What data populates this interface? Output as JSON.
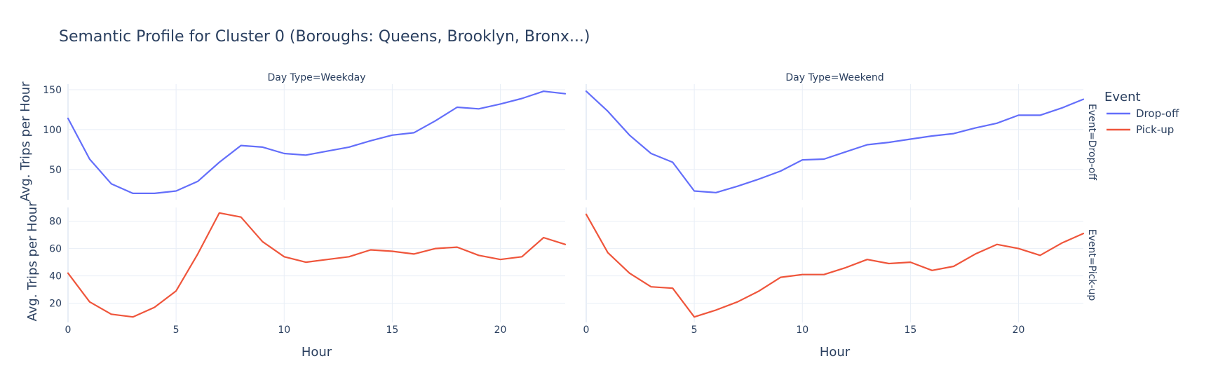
{
  "chart_data": {
    "type": "line",
    "title": "Semantic Profile for Cluster 0 (Boroughs: Queens, Brooklyn, Bronx...)",
    "xlabel": "Hour",
    "ylabel": "Avg. Trips per Hour",
    "xlim": [
      0,
      23
    ],
    "xticks": [
      0,
      5,
      10,
      15,
      20
    ],
    "grid": true,
    "legend": {
      "title": "Event",
      "placement": "top-right outside"
    },
    "column_facets": [
      "Day Type=Weekday",
      "Day Type=Weekend"
    ],
    "row_facets": [
      "Event=Drop-off",
      "Event=Pick-up"
    ],
    "rows": [
      {
        "name": "Drop-off",
        "ylim": [
          12,
          157
        ],
        "yticks": [
          50,
          100,
          150
        ]
      },
      {
        "name": "Pick-up",
        "ylim": [
          6,
          90
        ],
        "yticks": [
          20,
          40,
          60,
          80
        ]
      }
    ],
    "series": [
      {
        "name": "Drop-off",
        "color": "#636efa",
        "facet": "Day Type=Weekday",
        "x": [
          0,
          1,
          2,
          3,
          4,
          5,
          6,
          7,
          8,
          9,
          10,
          11,
          12,
          13,
          14,
          15,
          16,
          17,
          18,
          19,
          20,
          21,
          22,
          23
        ],
        "values": [
          114,
          63,
          32,
          20,
          20,
          23,
          35,
          59,
          80,
          78,
          70,
          68,
          73,
          78,
          86,
          93,
          96,
          111,
          128,
          126,
          132,
          139,
          148,
          145
        ]
      },
      {
        "name": "Drop-off",
        "color": "#636efa",
        "facet": "Day Type=Weekend",
        "x": [
          0,
          1,
          2,
          3,
          4,
          5,
          6,
          7,
          8,
          9,
          10,
          11,
          12,
          13,
          14,
          15,
          16,
          17,
          18,
          19,
          20,
          21,
          22,
          23
        ],
        "values": [
          148,
          123,
          93,
          70,
          59,
          23,
          21,
          29,
          38,
          48,
          62,
          63,
          72,
          81,
          84,
          88,
          92,
          95,
          102,
          108,
          118,
          118,
          127,
          138
        ]
      },
      {
        "name": "Pick-up",
        "color": "#ef553b",
        "facet": "Day Type=Weekday",
        "x": [
          0,
          1,
          2,
          3,
          4,
          5,
          6,
          7,
          8,
          9,
          10,
          11,
          12,
          13,
          14,
          15,
          16,
          17,
          18,
          19,
          20,
          21,
          22,
          23
        ],
        "values": [
          42,
          21,
          12,
          10,
          17,
          29,
          56,
          86,
          83,
          65,
          54,
          50,
          52,
          54,
          59,
          58,
          56,
          60,
          61,
          55,
          52,
          54,
          68,
          63
        ]
      },
      {
        "name": "Pick-up",
        "color": "#ef553b",
        "facet": "Day Type=Weekend",
        "x": [
          0,
          1,
          2,
          3,
          4,
          5,
          6,
          7,
          8,
          9,
          10,
          11,
          12,
          13,
          14,
          15,
          16,
          17,
          18,
          19,
          20,
          21,
          22,
          23
        ],
        "values": [
          85,
          57,
          42,
          32,
          31,
          10,
          15,
          21,
          29,
          39,
          41,
          41,
          46,
          52,
          49,
          50,
          44,
          47,
          56,
          63,
          60,
          55,
          64,
          71
        ]
      }
    ]
  }
}
